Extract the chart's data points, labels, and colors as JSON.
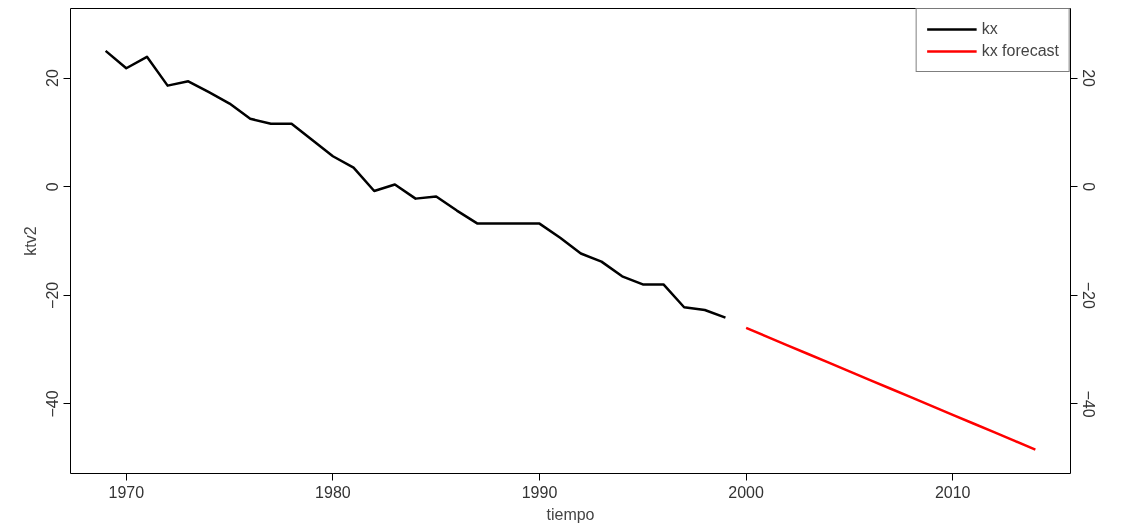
{
  "chart_data": {
    "type": "line",
    "xlabel": "tiempo",
    "ylabel": "ktv2",
    "xlim": [
      1967.3,
      2015.7
    ],
    "ylim": [
      -52.8,
      32.8
    ],
    "xticks": [
      1970,
      1980,
      1990,
      2000,
      2010
    ],
    "yticks": [
      -40,
      -20,
      0,
      20
    ],
    "y2lim": [
      -52.8,
      32.8
    ],
    "y2ticks": [
      -40,
      -20,
      0,
      20
    ],
    "grid": false,
    "legend": "top right",
    "line_style": "solid",
    "marker": "none",
    "series": [
      {
        "name": "kx",
        "color": "#000000",
        "x": [
          1969,
          1970,
          1971,
          1972,
          1973,
          1974,
          1975,
          1976,
          1977,
          1978,
          1979,
          1980,
          1981,
          1982,
          1983,
          1984,
          1985,
          1986,
          1987,
          1988,
          1989,
          1990,
          1991,
          1992,
          1993,
          1994,
          1995,
          1996,
          1997,
          1998,
          1999
        ],
        "values": [
          25.0,
          21.8,
          23.9,
          18.6,
          19.4,
          17.4,
          15.3,
          12.5,
          11.6,
          11.6,
          8.6,
          5.6,
          3.5,
          -0.8,
          0.4,
          -2.2,
          -1.8,
          -4.4,
          -6.8,
          -6.8,
          -6.8,
          -6.8,
          -9.4,
          -12.3,
          -13.8,
          -16.5,
          -18.0,
          -18.0,
          -22.2,
          -22.7,
          -24.1
        ]
      },
      {
        "name": "kx forecast",
        "color": "#ff0000",
        "x": [
          2000,
          2001,
          2002,
          2003,
          2004,
          2005,
          2006,
          2007,
          2008,
          2009,
          2010,
          2011,
          2012,
          2013,
          2014
        ],
        "values": [
          -26.0,
          -27.6,
          -29.2,
          -30.8,
          -32.4,
          -34.0,
          -35.6,
          -37.2,
          -38.8,
          -40.4,
          -42.0,
          -43.6,
          -45.2,
          -46.8,
          -48.4
        ]
      }
    ]
  }
}
